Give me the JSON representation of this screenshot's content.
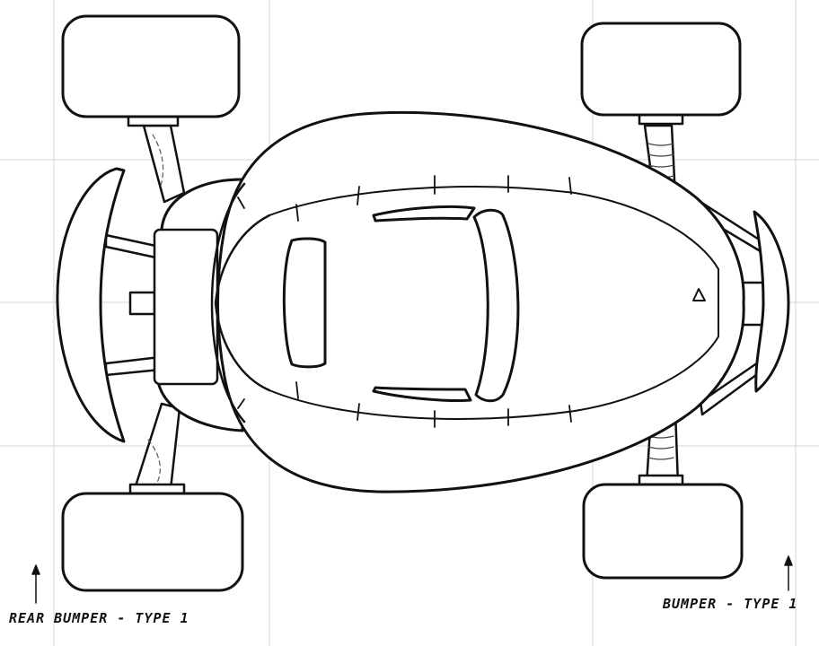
{
  "labels": {
    "rear_bumper": "REAR BUMPER - TYPE 1",
    "front_bumper": "BUMPER - TYPE 1"
  },
  "colors": {
    "ink": "#111111",
    "paper": "#ffffff",
    "guide": "#d4d4d4",
    "pencil": "#9a9a9a"
  }
}
